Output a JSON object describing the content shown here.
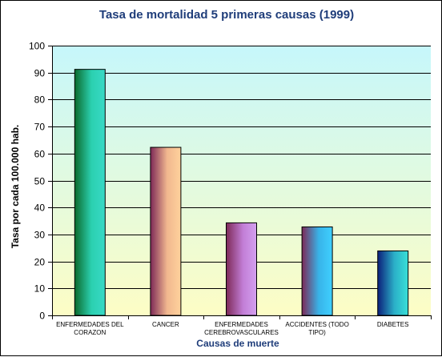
{
  "chart_data": {
    "type": "bar",
    "title": "Tasa de mortalidad 5 primeras causas (1999)",
    "xlabel": "Causas de muerte",
    "ylabel": "Tasa por cada 100.000 hab.",
    "ylim": [
      0,
      100
    ],
    "ytick_step": 10,
    "grid": true,
    "categories": [
      [
        "ENFERMEDADES DEL",
        "CORAZON"
      ],
      [
        "CANCER"
      ],
      [
        "ENFERMEDADES",
        "CEREBROVASCULARES"
      ],
      [
        "ACCIDENTES  (TODO",
        "TIPO)"
      ],
      [
        "DIABETES"
      ]
    ],
    "values": [
      91.2,
      62.3,
      34.3,
      32.8,
      23.9
    ],
    "bar_gradients": [
      [
        "#0b6a2c",
        "#2bd0b0",
        "#38d9c7"
      ],
      [
        "#7d2957",
        "#f1b88f",
        "#ffd29c"
      ],
      [
        "#7d2957",
        "#c27ed6",
        "#d4a0f0"
      ],
      [
        "#7d2957",
        "#38b3e8",
        "#3fd0ff"
      ],
      [
        "#0c1f7a",
        "#2bb0c8",
        "#39e0d8"
      ]
    ],
    "colors": {
      "title": "#1f3d7a",
      "xlabel": "#1f3d7a",
      "ylabel": "#000000",
      "plot_top": "#c6f7fb",
      "plot_bottom": "#fdfdc5"
    }
  }
}
